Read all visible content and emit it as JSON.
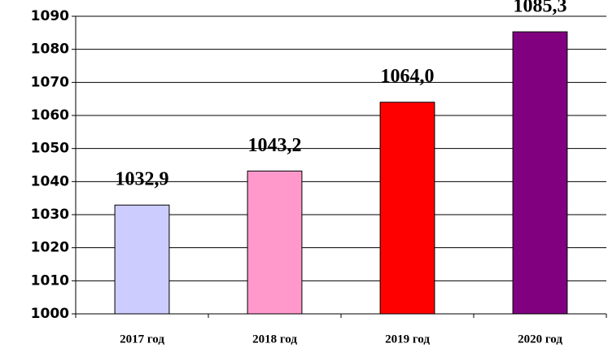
{
  "chart_data": {
    "type": "bar",
    "categories": [
      "2017 год",
      "2018 год",
      "2019 год",
      "2020 год"
    ],
    "values": [
      1032.9,
      1043.2,
      1064.0,
      1085.3
    ],
    "value_labels": [
      "1032,9",
      "1043,2",
      "1064,0",
      "1085,3"
    ],
    "colors": [
      "#ccccff",
      "#ff99cc",
      "#ff0000",
      "#800080"
    ],
    "ylim": [
      1000,
      1090
    ],
    "yticks": [
      1000,
      1010,
      1020,
      1030,
      1040,
      1050,
      1060,
      1070,
      1080,
      1090
    ],
    "grid": true
  }
}
